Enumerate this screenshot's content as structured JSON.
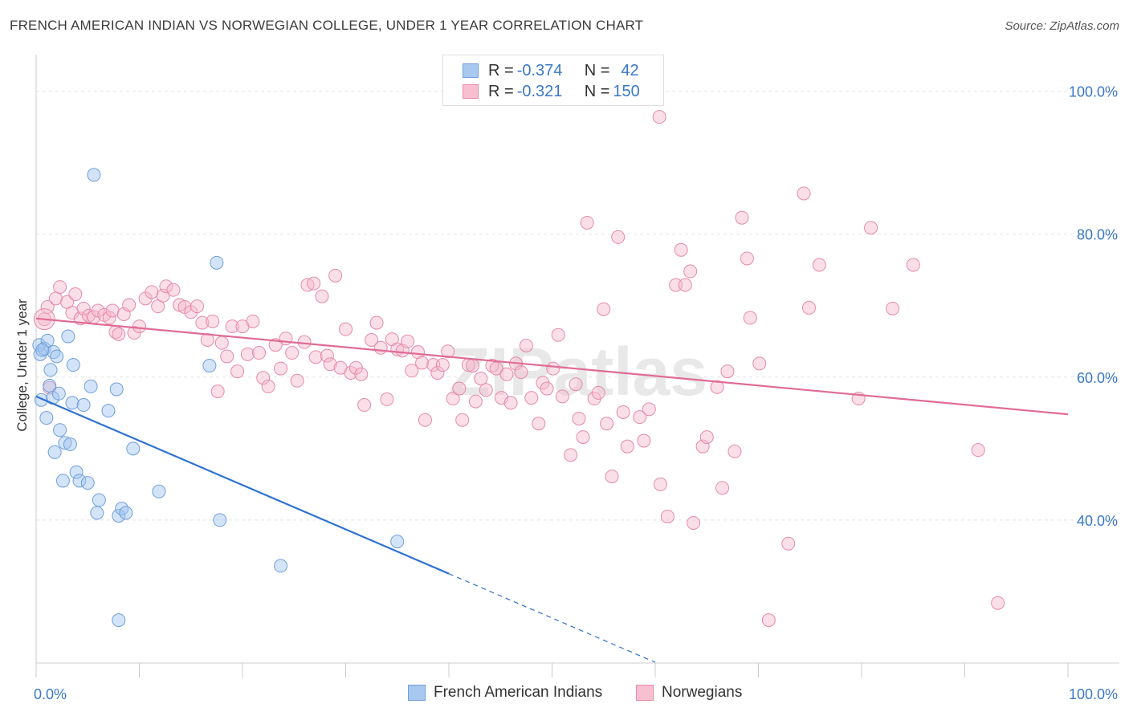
{
  "title": "FRENCH AMERICAN INDIAN VS NORWEGIAN COLLEGE, UNDER 1 YEAR CORRELATION CHART",
  "source": "Source: ZipAtlas.com",
  "watermark": "ZIPatlas",
  "legend": {
    "rows": [
      {
        "r_label": "R = ",
        "r_value": "-0.374",
        "n_label": "N = ",
        "n_value": "42",
        "color": "#a9c8f0",
        "stroke": "#6f9fdc"
      },
      {
        "r_label": "R = ",
        "r_value": "-0.321",
        "n_label": "N = ",
        "n_value": "150",
        "color": "#f7bfd0",
        "stroke": "#e88aaa"
      }
    ]
  },
  "bottom_legend": [
    {
      "label": "French American Indians",
      "color": "#a9c8f0",
      "stroke": "#6f9fdc"
    },
    {
      "label": "Norwegians",
      "color": "#f7bfd0",
      "stroke": "#e88aaa"
    }
  ],
  "colors": {
    "blue_fill": "rgba(160,195,240,0.45)",
    "blue_stroke": "#6f9fdc",
    "blue_line": "#2f72d0",
    "pink_fill": "rgba(247,185,205,0.45)",
    "pink_stroke": "#e58aa9",
    "pink_line": "#e06b96",
    "axis_text": "#3a78c9",
    "grid": "#e3e3e3"
  },
  "chart_data": {
    "type": "scatter",
    "title": "FRENCH AMERICAN INDIAN VS NORWEGIAN COLLEGE, UNDER 1 YEAR CORRELATION CHART",
    "xlabel": "",
    "ylabel": "College, Under 1 year",
    "xlim": [
      0,
      100
    ],
    "ylim": [
      20,
      104
    ],
    "x_tick_labels": [
      "0.0%",
      "100.0%"
    ],
    "y_ticks": [
      40,
      60,
      80,
      100
    ],
    "y_tick_labels": [
      "40.0%",
      "60.0%",
      "80.0%",
      "100.0%"
    ],
    "grid": true,
    "legend_position": "top-center",
    "series": [
      {
        "name": "French American Indians",
        "r": -0.374,
        "n": 42,
        "trend": {
          "x": [
            0,
            40
          ],
          "y": [
            57.3,
            32.5
          ],
          "dashed_to": [
            60,
            20.1
          ]
        },
        "points": [
          [
            0.3,
            64.5
          ],
          [
            0.4,
            63.2
          ],
          [
            0.5,
            56.8
          ],
          [
            0.8,
            64.0
          ],
          [
            1.0,
            54.3
          ],
          [
            1.1,
            65.1
          ],
          [
            1.3,
            58.8
          ],
          [
            1.4,
            61.0
          ],
          [
            1.6,
            57.1
          ],
          [
            1.7,
            63.5
          ],
          [
            1.8,
            49.5
          ],
          [
            2.0,
            62.9
          ],
          [
            2.2,
            57.7
          ],
          [
            2.3,
            52.6
          ],
          [
            2.6,
            45.5
          ],
          [
            2.8,
            50.8
          ],
          [
            3.1,
            65.7
          ],
          [
            3.3,
            50.6
          ],
          [
            3.5,
            56.4
          ],
          [
            3.6,
            61.7
          ],
          [
            3.9,
            46.7
          ],
          [
            4.2,
            45.5
          ],
          [
            4.6,
            56.1
          ],
          [
            5.0,
            45.2
          ],
          [
            5.3,
            58.7
          ],
          [
            5.6,
            88.3
          ],
          [
            5.9,
            41.0
          ],
          [
            6.1,
            42.8
          ],
          [
            7.0,
            55.3
          ],
          [
            7.8,
            58.3
          ],
          [
            8.0,
            40.6
          ],
          [
            8.3,
            41.6
          ],
          [
            8.7,
            41.0
          ],
          [
            9.4,
            50.0
          ],
          [
            11.9,
            44.0
          ],
          [
            16.8,
            61.6
          ],
          [
            17.5,
            76.0
          ],
          [
            17.8,
            40.0
          ],
          [
            23.7,
            33.6
          ],
          [
            35.0,
            37.0
          ],
          [
            8.0,
            26.0
          ],
          [
            0.6,
            63.8
          ]
        ]
      },
      {
        "name": "Norwegians",
        "r": -0.321,
        "n": 150,
        "trend": {
          "x": [
            0,
            100
          ],
          "y": [
            68.2,
            54.8
          ]
        },
        "points": [
          [
            0.8,
            68.1
          ],
          [
            1.1,
            69.8
          ],
          [
            1.3,
            58.5
          ],
          [
            1.9,
            71.0
          ],
          [
            2.3,
            72.6
          ],
          [
            3.0,
            70.5
          ],
          [
            3.5,
            69.0
          ],
          [
            3.8,
            71.6
          ],
          [
            4.3,
            68.2
          ],
          [
            4.6,
            69.6
          ],
          [
            5.1,
            68.6
          ],
          [
            5.6,
            68.4
          ],
          [
            6.0,
            69.3
          ],
          [
            6.6,
            68.7
          ],
          [
            7.1,
            68.3
          ],
          [
            7.4,
            69.3
          ],
          [
            7.7,
            66.3
          ],
          [
            8.0,
            66.0
          ],
          [
            8.5,
            68.8
          ],
          [
            9.0,
            70.1
          ],
          [
            9.5,
            66.2
          ],
          [
            10.0,
            67.1
          ],
          [
            10.6,
            71.0
          ],
          [
            11.2,
            71.9
          ],
          [
            11.8,
            69.9
          ],
          [
            12.3,
            71.4
          ],
          [
            12.6,
            72.7
          ],
          [
            13.3,
            72.2
          ],
          [
            13.9,
            70.1
          ],
          [
            14.4,
            69.8
          ],
          [
            15.0,
            69.1
          ],
          [
            15.6,
            69.9
          ],
          [
            16.1,
            67.6
          ],
          [
            16.6,
            65.2
          ],
          [
            17.1,
            67.8
          ],
          [
            17.6,
            58.0
          ],
          [
            18.0,
            64.8
          ],
          [
            18.5,
            62.9
          ],
          [
            19.0,
            67.1
          ],
          [
            19.5,
            60.8
          ],
          [
            20.0,
            67.1
          ],
          [
            20.5,
            63.2
          ],
          [
            21.0,
            67.8
          ],
          [
            21.6,
            63.4
          ],
          [
            22.0,
            59.9
          ],
          [
            22.5,
            58.7
          ],
          [
            23.2,
            64.5
          ],
          [
            23.7,
            61.2
          ],
          [
            24.2,
            65.4
          ],
          [
            24.8,
            63.4
          ],
          [
            25.3,
            59.5
          ],
          [
            26.0,
            64.9
          ],
          [
            26.3,
            72.9
          ],
          [
            26.9,
            73.1
          ],
          [
            27.1,
            62.8
          ],
          [
            27.7,
            71.3
          ],
          [
            28.2,
            63.0
          ],
          [
            28.5,
            61.8
          ],
          [
            29.0,
            74.2
          ],
          [
            29.5,
            61.3
          ],
          [
            30.0,
            66.7
          ],
          [
            30.5,
            60.6
          ],
          [
            31.0,
            61.3
          ],
          [
            31.5,
            60.4
          ],
          [
            31.8,
            56.1
          ],
          [
            32.5,
            65.2
          ],
          [
            33.0,
            67.6
          ],
          [
            33.4,
            64.1
          ],
          [
            34.0,
            56.9
          ],
          [
            34.5,
            65.3
          ],
          [
            35.0,
            63.9
          ],
          [
            35.5,
            63.7
          ],
          [
            36.0,
            65.0
          ],
          [
            36.4,
            60.9
          ],
          [
            37.0,
            63.5
          ],
          [
            37.4,
            62.0
          ],
          [
            37.7,
            54.0
          ],
          [
            38.5,
            61.7
          ],
          [
            38.9,
            60.6
          ],
          [
            39.4,
            61.7
          ],
          [
            39.9,
            63.6
          ],
          [
            40.4,
            57.0
          ],
          [
            41.0,
            58.4
          ],
          [
            41.3,
            54.0
          ],
          [
            41.9,
            61.7
          ],
          [
            42.3,
            61.6
          ],
          [
            42.6,
            56.6
          ],
          [
            43.1,
            59.8
          ],
          [
            43.6,
            58.2
          ],
          [
            44.2,
            61.6
          ],
          [
            44.6,
            61.2
          ],
          [
            45.1,
            57.1
          ],
          [
            45.6,
            60.4
          ],
          [
            46.0,
            56.4
          ],
          [
            46.5,
            61.9
          ],
          [
            47.0,
            60.7
          ],
          [
            47.5,
            64.4
          ],
          [
            48.0,
            57.1
          ],
          [
            48.7,
            53.5
          ],
          [
            49.1,
            59.2
          ],
          [
            49.5,
            58.4
          ],
          [
            50.1,
            61.2
          ],
          [
            50.6,
            65.9
          ],
          [
            51.0,
            57.3
          ],
          [
            51.8,
            49.1
          ],
          [
            52.3,
            59.0
          ],
          [
            52.6,
            54.2
          ],
          [
            53.0,
            51.6
          ],
          [
            53.4,
            81.6
          ],
          [
            54.1,
            57.0
          ],
          [
            54.5,
            57.8
          ],
          [
            55.0,
            69.5
          ],
          [
            55.3,
            53.5
          ],
          [
            55.8,
            46.1
          ],
          [
            56.4,
            79.6
          ],
          [
            56.9,
            55.1
          ],
          [
            57.3,
            50.3
          ],
          [
            58.5,
            54.4
          ],
          [
            58.9,
            51.1
          ],
          [
            59.4,
            55.5
          ],
          [
            60.5,
            45.0
          ],
          [
            61.2,
            40.5
          ],
          [
            62.0,
            72.9
          ],
          [
            62.5,
            77.8
          ],
          [
            62.9,
            72.9
          ],
          [
            63.4,
            74.8
          ],
          [
            63.7,
            39.6
          ],
          [
            64.6,
            50.3
          ],
          [
            65.0,
            51.6
          ],
          [
            66.0,
            58.6
          ],
          [
            66.5,
            44.5
          ],
          [
            67.0,
            60.8
          ],
          [
            67.7,
            49.6
          ],
          [
            68.4,
            82.3
          ],
          [
            68.9,
            76.6
          ],
          [
            69.2,
            68.3
          ],
          [
            70.1,
            61.9
          ],
          [
            72.9,
            36.7
          ],
          [
            74.4,
            85.7
          ],
          [
            74.9,
            69.7
          ],
          [
            75.9,
            75.7
          ],
          [
            79.7,
            57.0
          ],
          [
            80.9,
            80.9
          ],
          [
            83.0,
            69.6
          ],
          [
            85.0,
            75.7
          ],
          [
            91.3,
            49.8
          ],
          [
            93.2,
            28.4
          ],
          [
            71.0,
            26.0
          ],
          [
            60.4,
            96.4
          ]
        ]
      }
    ]
  }
}
